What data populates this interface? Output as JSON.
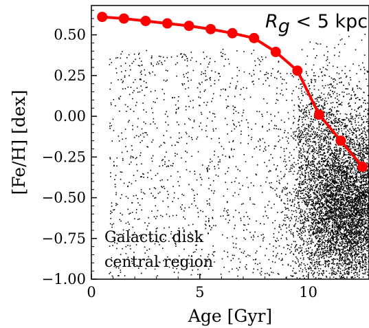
{
  "chart_data": {
    "type": "scatter",
    "xlabel": "Age [Gyr]",
    "ylabel": "[Fe/H] [dex]",
    "xlim": [
      0,
      12.8
    ],
    "ylim": [
      -1.0,
      0.68
    ],
    "x_ticks": [
      {
        "value": 0,
        "label": "0"
      },
      {
        "value": 5,
        "label": "5"
      },
      {
        "value": 10,
        "label": "10"
      }
    ],
    "y_ticks": [
      {
        "value": 0.5,
        "label": "0.50"
      },
      {
        "value": 0.25,
        "label": "0.25"
      },
      {
        "value": 0.0,
        "label": "0.00"
      },
      {
        "value": -0.25,
        "label": "−0.25"
      },
      {
        "value": -0.5,
        "label": "−0.50"
      },
      {
        "value": -0.75,
        "label": "−0.75"
      },
      {
        "value": -1.0,
        "label": "−1.00"
      }
    ],
    "series": [
      {
        "kind": "trend-line-markers",
        "color": "#ff0000",
        "x": [
          0.5,
          1.5,
          2.5,
          3.5,
          4.5,
          5.5,
          6.5,
          7.5,
          8.5,
          9.5,
          10.5,
          11.5,
          12.5
        ],
        "y": [
          0.61,
          0.6,
          0.585,
          0.57,
          0.555,
          0.535,
          0.51,
          0.48,
          0.395,
          0.28,
          0.01,
          -0.15,
          -0.31
        ]
      },
      {
        "kind": "scatter-cloud",
        "color": "#000000",
        "note_points": "dense cloud of individual stars, concentrated at old ages (10-12.8 Gyr) and [Fe/H] around -0.6"
      }
    ],
    "grid": false
  },
  "annotations": {
    "radius_label": "R",
    "radius_subscript": "g",
    "radius_condition": " < 5  kpc",
    "region_line1": "Galactic disk",
    "region_line2": "central region"
  },
  "colors": {
    "trend": "#ff0000",
    "points": "#000000",
    "background": "#ffffff"
  }
}
